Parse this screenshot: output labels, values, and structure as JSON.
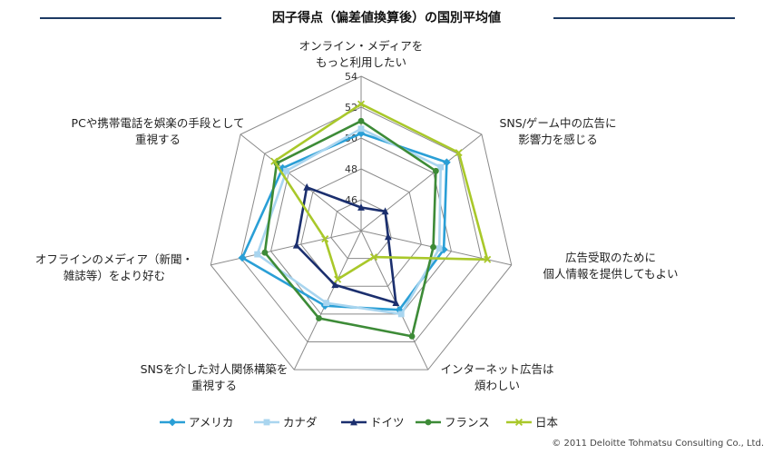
{
  "title": "因子得点（偏差値換算後）の国別平均値",
  "footer": "© 2011 Deloitte Tohmatsu Consulting Co., Ltd.",
  "chart_data": {
    "type": "radar",
    "title": "因子得点（偏差値換算後）の国別平均値",
    "axes": [
      "オンライン・メディアを\nもっと利用したい",
      "SNS/ゲーム中の広告に\n影響力を感じる",
      "広告受取のために\n個人情報を提供してもよい",
      "インターネット広告は\n煩わしい",
      "SNSを介した対人関係構築を\n重視する",
      "オフラインのメディア（新聞・\n雑誌等）をより好む",
      "PCや携帯電話を娯楽の手段として\n重視する"
    ],
    "r_ticks": [
      46,
      48,
      50,
      52,
      54
    ],
    "r_range": [
      44,
      54
    ],
    "grid": true,
    "legend_position": "bottom",
    "series": [
      {
        "name": "アメリカ",
        "color": "#2a9fd6",
        "marker": "diamond",
        "values": [
          50.3,
          51.1,
          49.5,
          49.7,
          49.4,
          51.9,
          50.5
        ]
      },
      {
        "name": "カナダ",
        "color": "#a9d5ef",
        "marker": "square",
        "values": [
          50.6,
          50.6,
          49.2,
          50.0,
          49.2,
          50.9,
          50.2
        ]
      },
      {
        "name": "ドイツ",
        "color": "#1b2f6e",
        "marker": "triangle",
        "values": [
          45.5,
          46.0,
          45.8,
          49.2,
          47.9,
          48.3,
          48.5
        ]
      },
      {
        "name": "フランス",
        "color": "#3d8b37",
        "marker": "circle",
        "values": [
          51.1,
          50.2,
          48.8,
          51.6,
          50.3,
          50.4,
          51.0
        ]
      },
      {
        "name": "日本",
        "color": "#a9c82a",
        "marker": "x",
        "values": [
          52.2,
          52.1,
          52.4,
          45.9,
          47.5,
          46.4,
          51.2
        ]
      }
    ]
  }
}
